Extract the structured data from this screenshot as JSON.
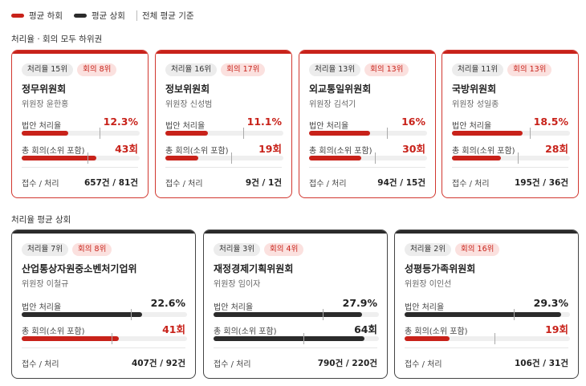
{
  "legend": {
    "below_label": "평균 하회",
    "above_label": "평균 상회",
    "basis_label": "전체 평균 기준",
    "below_color": "#c8221a",
    "above_color": "#2b2b2b"
  },
  "sections": [
    {
      "title": "처리율 · 회의 모두 하위권",
      "cards": [
        {
          "badges": [
            "처리율 15위",
            "회의 8위"
          ],
          "name": "정무위원회",
          "chair": "위원장 윤한홍",
          "rate_label": "법안 처리율",
          "rate_value": "12.3%",
          "rate_pct": 12.3,
          "rate_status": "below",
          "meeting_label": "총 회의(소위 포함)",
          "meeting_value": "43회",
          "meeting_count": 43,
          "meeting_status": "below",
          "footer_label": "접수 / 처리",
          "footer_value": "657건 / 81건"
        },
        {
          "badges": [
            "처리율 16위",
            "회의 17위"
          ],
          "name": "정보위원회",
          "chair": "위원장 신성범",
          "rate_label": "법안 처리율",
          "rate_value": "11.1%",
          "rate_pct": 11.1,
          "rate_status": "below",
          "meeting_label": "총 회의(소위 포함)",
          "meeting_value": "19회",
          "meeting_count": 19,
          "meeting_status": "below",
          "footer_label": "접수 / 처리",
          "footer_value": "9건 / 1건"
        },
        {
          "badges": [
            "처리율 13위",
            "회의 13위"
          ],
          "name": "외교통일위원회",
          "chair": "위원장 김석기",
          "rate_label": "법안 처리율",
          "rate_value": "16%",
          "rate_pct": 16,
          "rate_status": "below",
          "meeting_label": "총 회의(소위 포함)",
          "meeting_value": "30회",
          "meeting_count": 30,
          "meeting_status": "below",
          "footer_label": "접수 / 처리",
          "footer_value": "94건 / 15건"
        },
        {
          "badges": [
            "처리율 11위",
            "회의 13위"
          ],
          "name": "국방위원회",
          "chair": "위원장 성일종",
          "rate_label": "법안 처리율",
          "rate_value": "18.5%",
          "rate_pct": 18.5,
          "rate_status": "below",
          "meeting_label": "총 회의(소위 포함)",
          "meeting_value": "28회",
          "meeting_count": 28,
          "meeting_status": "below",
          "footer_label": "접수 / 처리",
          "footer_value": "195건 / 36건"
        }
      ]
    },
    {
      "title": "처리율 평균 상회",
      "cards": [
        {
          "badges": [
            "처리율 7위",
            "회의 8위"
          ],
          "name": "산업통상자원중소벤처기업위",
          "chair": "위원장 이철규",
          "rate_label": "법안 처리율",
          "rate_value": "22.6%",
          "rate_pct": 22.6,
          "rate_status": "above",
          "meeting_label": "총 회의(소위 포함)",
          "meeting_value": "41회",
          "meeting_count": 41,
          "meeting_status": "below",
          "footer_label": "접수 / 처리",
          "footer_value": "407건 / 92건"
        },
        {
          "badges": [
            "처리율 3위",
            "회의 4위"
          ],
          "name": "재정경제기획위원회",
          "chair": "위원장 임이자",
          "rate_label": "법안 처리율",
          "rate_value": "27.9%",
          "rate_pct": 27.9,
          "rate_status": "above",
          "meeting_label": "총 회의(소위 포함)",
          "meeting_value": "64회",
          "meeting_count": 64,
          "meeting_status": "above",
          "footer_label": "접수 / 처리",
          "footer_value": "790건 / 220건"
        },
        {
          "badges": [
            "처리율 2위",
            "회의 16위"
          ],
          "name": "성평등가족위원회",
          "chair": "위원장 이인선",
          "rate_label": "법안 처리율",
          "rate_value": "29.3%",
          "rate_pct": 29.3,
          "rate_status": "above",
          "meeting_label": "총 회의(소위 포함)",
          "meeting_value": "19회",
          "meeting_count": 19,
          "meeting_status": "below",
          "footer_label": "접수 / 처리",
          "footer_value": "106건 / 31건"
        }
      ]
    }
  ]
}
